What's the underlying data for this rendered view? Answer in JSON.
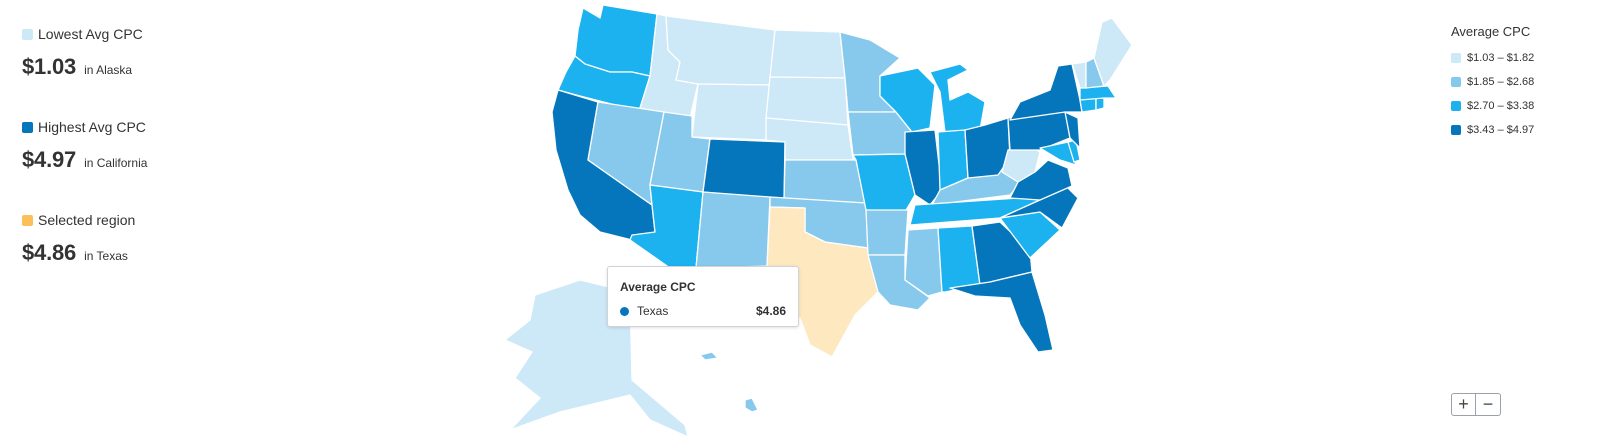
{
  "colors": {
    "tier1": "#cde8f7",
    "tier2": "#86c9ec",
    "tier3": "#1bb2ef",
    "tier4": "#0576bc",
    "selected": "#fde8c0",
    "selected_swatch": "#fcc05a",
    "tooltip_dot": "#0576bc"
  },
  "stats": {
    "lowest": {
      "label": "Lowest Avg CPC",
      "value": "$1.03",
      "place": "in Alaska"
    },
    "highest": {
      "label": "Highest Avg CPC",
      "value": "$4.97",
      "place": "in California"
    },
    "selected": {
      "label": "Selected region",
      "value": "$4.86",
      "place": "in Texas"
    }
  },
  "legend": {
    "title": "Average CPC",
    "items": [
      {
        "range": "$1.03 – $1.82"
      },
      {
        "range": "$1.85 – $2.68"
      },
      {
        "range": "$2.70 – $3.38"
      },
      {
        "range": "$3.43 – $4.97"
      }
    ]
  },
  "tooltip": {
    "title": "Average CPC",
    "region": "Texas",
    "value": "$4.86"
  },
  "zoom": {
    "in_label": "+",
    "out_label": "−"
  },
  "states": {
    "WA": 3,
    "OR": 3,
    "CA": 4,
    "ID": 1,
    "NV": 2,
    "MT": 1,
    "WY": 1,
    "UT": 2,
    "AZ": 3,
    "CO": 4,
    "NM": 2,
    "ND": 1,
    "SD": 1,
    "NE": 1,
    "KS": 2,
    "OK": 2,
    "TX": "selected",
    "MN": 2,
    "IA": 2,
    "MO": 3,
    "AR": 2,
    "LA": 2,
    "WI": 3,
    "IL": 4,
    "MS": 2,
    "MI": 3,
    "IN": 3,
    "KY": 2,
    "TN": 3,
    "AL": 3,
    "OH": 4,
    "WV": 1,
    "GA": 4,
    "FL": 4,
    "SC": 3,
    "NC": 4,
    "VA": 4,
    "PA": 4,
    "NY": 4,
    "MD": 3,
    "DE": 3,
    "NJ": 4,
    "CT": 3,
    "RI": 3,
    "MA": 3,
    "VT": 1,
    "NH": 2,
    "ME": 1,
    "AK": 1,
    "HI": 2
  }
}
